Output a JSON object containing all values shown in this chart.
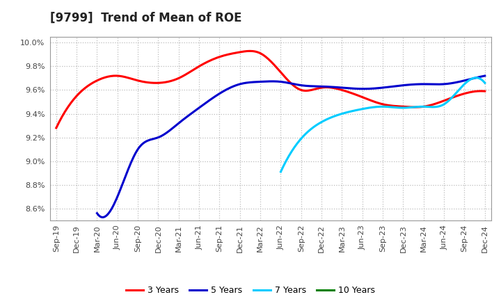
{
  "title": "[9799]  Trend of Mean of ROE",
  "background_color": "#ffffff",
  "grid_color": "#bbbbbb",
  "x_labels": [
    "Sep-19",
    "Dec-19",
    "Mar-20",
    "Jun-20",
    "Sep-20",
    "Dec-20",
    "Mar-21",
    "Jun-21",
    "Sep-21",
    "Dec-21",
    "Mar-22",
    "Jun-22",
    "Sep-22",
    "Dec-22",
    "Mar-23",
    "Jun-23",
    "Sep-23",
    "Dec-23",
    "Mar-24",
    "Jun-24",
    "Sep-24",
    "Dec-24"
  ],
  "series": [
    {
      "label": "3 Years",
      "color": "#ff0000",
      "data_x": [
        0,
        1,
        2,
        3,
        4,
        5,
        6,
        7,
        8,
        9,
        10,
        11,
        12,
        13,
        14,
        15,
        16,
        17,
        18,
        19,
        20,
        21
      ],
      "data_y": [
        9.28,
        9.55,
        9.68,
        9.72,
        9.68,
        9.66,
        9.7,
        9.8,
        9.88,
        9.92,
        9.91,
        9.75,
        9.6,
        9.62,
        9.6,
        9.54,
        9.48,
        9.46,
        9.46,
        9.51,
        9.57,
        9.59
      ]
    },
    {
      "label": "5 Years",
      "color": "#0000cd",
      "data_x": [
        2,
        3,
        4,
        5,
        6,
        7,
        8,
        9,
        10,
        11,
        12,
        13,
        14,
        15,
        16,
        17,
        18,
        19,
        20,
        21
      ],
      "data_y": [
        8.56,
        8.7,
        9.1,
        9.2,
        9.32,
        9.45,
        9.57,
        9.65,
        9.67,
        9.67,
        9.64,
        9.63,
        9.62,
        9.61,
        9.62,
        9.64,
        9.65,
        9.65,
        9.68,
        9.72
      ]
    },
    {
      "label": "7 Years",
      "color": "#00ccff",
      "data_x": [
        11,
        12,
        13,
        14,
        15,
        16,
        17,
        18,
        19,
        20,
        21
      ],
      "data_y": [
        8.91,
        9.19,
        9.33,
        9.4,
        9.44,
        9.46,
        9.45,
        9.46,
        9.48,
        9.65,
        9.66
      ]
    },
    {
      "label": "10 Years",
      "color": "#008000",
      "data_x": [],
      "data_y": []
    }
  ],
  "ylim": [
    8.5,
    10.05
  ],
  "yticks": [
    8.6,
    8.8,
    9.0,
    9.2,
    9.4,
    9.6,
    9.8,
    10.0
  ],
  "title_fontsize": 12,
  "tick_fontsize": 8,
  "legend_fontsize": 9
}
